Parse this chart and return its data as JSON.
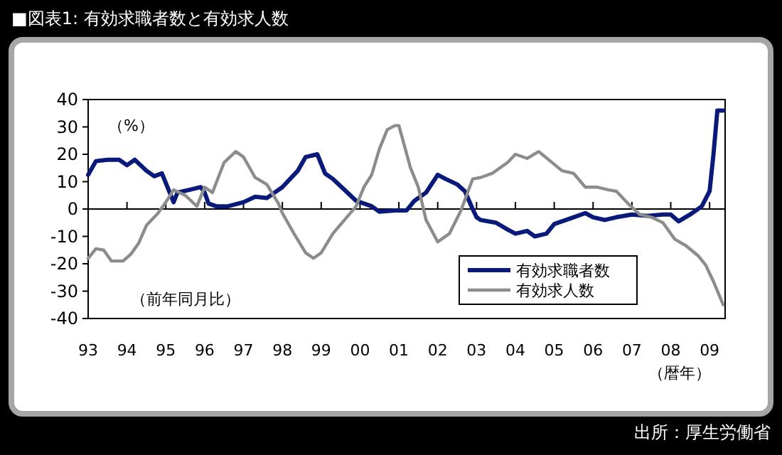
{
  "chart_data": {
    "type": "line",
    "title": "■図表1: 有効求職者数と有効求人数",
    "ylabel": "（%）",
    "xlabel": "（暦年）",
    "annotations": [
      "（前年同月比）",
      "出所：厚生労働省"
    ],
    "xlim": [
      1993,
      2009.4
    ],
    "ylim": [
      -40,
      40
    ],
    "xticks": [
      {
        "value": 1993,
        "label": "93"
      },
      {
        "value": 1994,
        "label": "94"
      },
      {
        "value": 1995,
        "label": "95"
      },
      {
        "value": 1996,
        "label": "96"
      },
      {
        "value": 1997,
        "label": "97"
      },
      {
        "value": 1998,
        "label": "98"
      },
      {
        "value": 1999,
        "label": "99"
      },
      {
        "value": 2000,
        "label": "00"
      },
      {
        "value": 2001,
        "label": "01"
      },
      {
        "value": 2002,
        "label": "02"
      },
      {
        "value": 2003,
        "label": "03"
      },
      {
        "value": 2004,
        "label": "04"
      },
      {
        "value": 2005,
        "label": "05"
      },
      {
        "value": 2006,
        "label": "06"
      },
      {
        "value": 2007,
        "label": "07"
      },
      {
        "value": 2008,
        "label": "08"
      },
      {
        "value": 2009,
        "label": "09"
      }
    ],
    "yticks": [
      -40,
      -30,
      -20,
      -10,
      0,
      10,
      20,
      30,
      40
    ],
    "legend": "bottom right",
    "marker": "none",
    "line_style": "solid",
    "series": [
      {
        "name": "有効求職者数",
        "color": "#0a1a7a",
        "x": [
          1993.0,
          1993.2,
          1993.5,
          1993.8,
          1994.0,
          1994.2,
          1994.5,
          1994.7,
          1994.9,
          1995.2,
          1995.3,
          1995.6,
          1995.9,
          1996.0,
          1996.1,
          1996.3,
          1996.6,
          1997.0,
          1997.3,
          1997.6,
          1997.8,
          1998.0,
          1998.2,
          1998.4,
          1998.6,
          1998.9,
          1999.1,
          1999.3,
          1999.6,
          1999.9,
          2000.0,
          2000.3,
          2000.5,
          2000.9,
          2001.2,
          2001.4,
          2001.7,
          2002.0,
          2002.2,
          2002.5,
          2002.7,
          2002.9,
          2003.0,
          2003.1,
          2003.5,
          2003.8,
          2004.0,
          2004.3,
          2004.5,
          2004.8,
          2005.0,
          2005.5,
          2005.8,
          2006.0,
          2006.3,
          2006.6,
          2007.0,
          2007.4,
          2007.8,
          2008.0,
          2008.2,
          2008.5,
          2008.8,
          2009.0,
          2009.1,
          2009.2,
          2009.35
        ],
        "values": [
          12.5,
          17.5,
          18,
          18,
          16,
          18,
          14,
          12,
          13,
          2.5,
          6,
          7,
          8,
          6,
          2,
          1,
          1,
          2.5,
          4.5,
          4,
          6,
          8,
          11,
          14,
          19,
          20,
          13,
          11,
          7,
          3,
          2.5,
          1,
          -1,
          -0.5,
          -0.5,
          3,
          6,
          12.5,
          11,
          9,
          6.5,
          0,
          -3,
          -4,
          -5,
          -7.5,
          -9,
          -8,
          -10,
          -9,
          -5.5,
          -3,
          -1.5,
          -3,
          -4,
          -3,
          -2,
          -2.5,
          -2,
          -2,
          -4.5,
          -2,
          1,
          6.5,
          20,
          36,
          36
        ]
      },
      {
        "name": "有効求人数",
        "color": "#8c8c8c",
        "x": [
          1993.0,
          1993.2,
          1993.4,
          1993.6,
          1993.9,
          1994.1,
          1994.3,
          1994.5,
          1994.8,
          1995.0,
          1995.2,
          1995.5,
          1995.8,
          1996.0,
          1996.2,
          1996.5,
          1996.8,
          1997.0,
          1997.3,
          1997.6,
          1997.9,
          1998.0,
          1998.3,
          1998.6,
          1998.8,
          1999.0,
          1999.3,
          1999.6,
          1999.9,
          2000.1,
          2000.3,
          2000.5,
          2000.7,
          2000.9,
          2001.0,
          2001.3,
          2001.5,
          2001.7,
          2002.0,
          2002.3,
          2002.6,
          2002.9,
          2003.1,
          2003.4,
          2003.8,
          2004.0,
          2004.3,
          2004.6,
          2004.9,
          2005.2,
          2005.5,
          2005.8,
          2006.1,
          2006.4,
          2006.6,
          2006.9,
          2007.2,
          2007.5,
          2007.8,
          2008.1,
          2008.4,
          2008.7,
          2008.9,
          2009.1,
          2009.35
        ],
        "values": [
          -18,
          -14.5,
          -15,
          -19,
          -19,
          -16.5,
          -12.5,
          -6,
          -1.5,
          2.5,
          7,
          5,
          1,
          8,
          6,
          17,
          21,
          19,
          11.5,
          9,
          2,
          -1.5,
          -9,
          -16,
          -18,
          -16,
          -9,
          -4,
          1,
          8,
          12.5,
          22,
          29,
          30.5,
          30.5,
          15,
          8,
          -4,
          -12,
          -9,
          -0.5,
          11,
          11.5,
          13,
          17,
          20,
          18.5,
          21,
          17.5,
          14,
          13,
          8,
          8,
          7,
          6.5,
          2,
          -2,
          -3,
          -5,
          -11,
          -13.5,
          -17,
          -20.5,
          -26.5,
          -35
        ]
      }
    ]
  }
}
